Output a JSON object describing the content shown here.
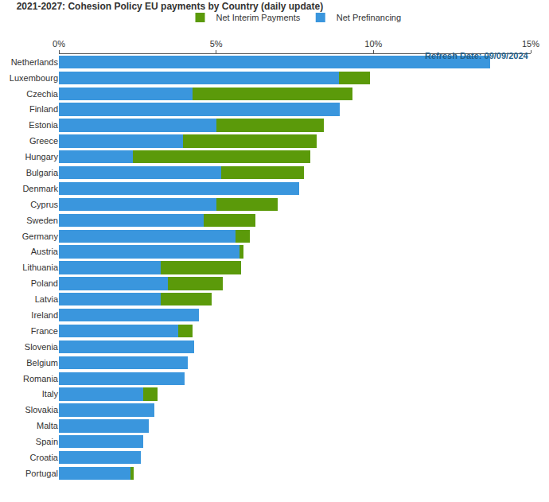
{
  "chart_data": {
    "type": "bar",
    "title": "2021-2027: Cohesion Policy EU payments by Country (daily update)",
    "orientation": "horizontal",
    "stacked": true,
    "legend": "top",
    "grid": false,
    "categories": [
      "Netherlands",
      "Luxembourg",
      "Czechia",
      "Finland",
      "Estonia",
      "Greece",
      "Hungary",
      "Bulgaria",
      "Denmark",
      "Cyprus",
      "Sweden",
      "Germany",
      "Austria",
      "Lithuania",
      "Poland",
      "Latvia",
      "Ireland",
      "France",
      "Slovenia",
      "Belgium",
      "Romania",
      "Italy",
      "Slovakia",
      "Malta",
      "Spain",
      "Croatia",
      "Portugal"
    ],
    "series": [
      {
        "name": "Net Prefinancing",
        "color": "#3a96dd",
        "values": [
          13.7,
          8.9,
          4.24,
          8.94,
          5.02,
          3.94,
          2.34,
          5.17,
          7.64,
          5.02,
          4.61,
          5.62,
          5.74,
          3.25,
          3.47,
          3.25,
          4.46,
          3.79,
          4.29,
          4.11,
          3.99,
          2.68,
          3.03,
          2.86,
          2.68,
          2.61,
          2.27
        ]
      },
      {
        "name": "Net Interim Payments",
        "color": "#5b9a0a",
        "values": [
          0,
          1.0,
          5.1,
          0,
          3.4,
          4.26,
          5.66,
          2.61,
          0,
          1.93,
          1.65,
          0.44,
          0.12,
          2.54,
          1.75,
          1.6,
          0,
          0.47,
          0,
          0,
          0,
          0.45,
          0,
          0,
          0,
          0,
          0.12
        ]
      }
    ],
    "xlim": [
      0,
      15
    ],
    "xticks": [
      {
        "value": 0,
        "label": "0%"
      },
      {
        "value": 5,
        "label": "5%"
      },
      {
        "value": 10,
        "label": "10%"
      },
      {
        "value": 15,
        "label": "15%"
      }
    ],
    "annotations": [
      "Refresh Date: 09/09/2024"
    ]
  }
}
